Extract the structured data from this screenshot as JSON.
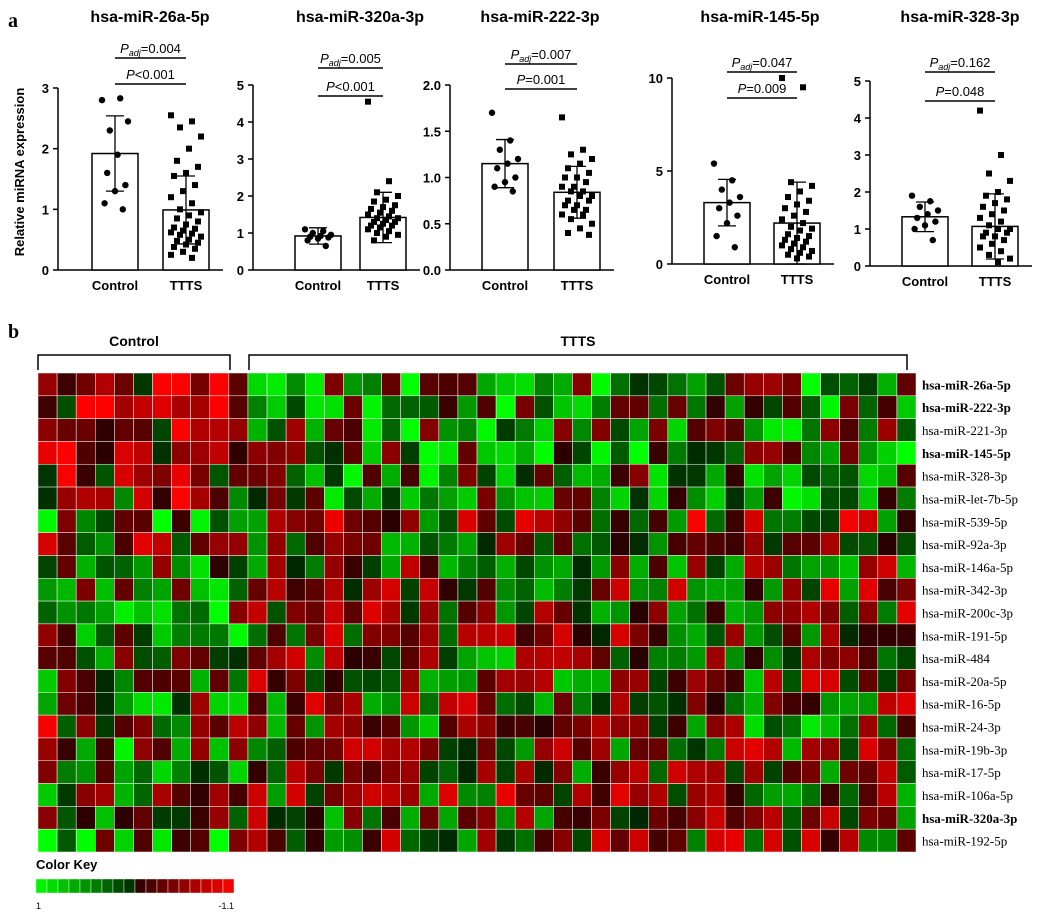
{
  "panel_labels": {
    "a": "a",
    "b": "b"
  },
  "y_axis_label": "Relative miRNA expression",
  "chart_data": [
    {
      "type": "bar",
      "title": "hsa-miR-26a-5p",
      "categories": [
        "Control",
        "TTTS"
      ],
      "values": [
        1.92,
        0.99
      ],
      "sd": [
        0.62,
        0.56
      ],
      "ylim": [
        0,
        3
      ],
      "yticks": [
        0,
        1,
        2,
        3
      ],
      "ytick_labels": [
        "0",
        "1",
        "2",
        "3"
      ],
      "points": [
        [
          2.8,
          2.83,
          2.3,
          2.45,
          1.9,
          1.6,
          1.4,
          1.3,
          1.1,
          1.0
        ],
        [
          2.55,
          2.45,
          2.35,
          2.2,
          2.0,
          1.8,
          1.7,
          1.6,
          1.55,
          1.4,
          1.3,
          1.2,
          1.1,
          1.0,
          0.95,
          0.9,
          0.85,
          0.8,
          0.75,
          0.7,
          0.68,
          0.65,
          0.62,
          0.6,
          0.58,
          0.55,
          0.5,
          0.48,
          0.45,
          0.42,
          0.38,
          0.35,
          0.3,
          0.25,
          0.2
        ]
      ],
      "brackets": [
        {
          "label_prefix": "P",
          "label_sub": "adj",
          "value": "=0.004"
        },
        {
          "label_prefix": "P",
          "label_sub": "",
          "value": "<0.001"
        }
      ]
    },
    {
      "type": "bar",
      "title": "hsa-miR-320a-3p",
      "categories": [
        "Control",
        "TTTS"
      ],
      "values": [
        0.92,
        1.42
      ],
      "sd": [
        0.22,
        0.68
      ],
      "ylim": [
        0,
        5
      ],
      "yticks": [
        0,
        1,
        2,
        3,
        4,
        5
      ],
      "ytick_labels": [
        "0",
        "1",
        "2",
        "3",
        "4",
        "5"
      ],
      "points": [
        [
          1.1,
          1.05,
          1.0,
          0.95,
          0.92,
          0.9,
          0.88,
          0.85,
          0.8,
          0.65
        ],
        [
          4.55,
          2.4,
          2.1,
          2.0,
          1.9,
          1.85,
          1.75,
          1.7,
          1.65,
          1.6,
          1.55,
          1.5,
          1.45,
          1.4,
          1.4,
          1.35,
          1.3,
          1.3,
          1.25,
          1.2,
          1.2,
          1.15,
          1.1,
          1.05,
          1.0,
          0.95,
          0.9,
          0.8
        ]
      ],
      "brackets": [
        {
          "label_prefix": "P",
          "label_sub": "adj",
          "value": "=0.005"
        },
        {
          "label_prefix": "P",
          "label_sub": "",
          "value": "<0.001"
        }
      ]
    },
    {
      "type": "bar",
      "title": "hsa-miR-222-3p",
      "categories": [
        "Control",
        "TTTS"
      ],
      "values": [
        1.15,
        0.84
      ],
      "sd": [
        0.26,
        0.28
      ],
      "ylim": [
        0,
        2
      ],
      "yticks": [
        0,
        0.5,
        1,
        1.5,
        2
      ],
      "ytick_labels": [
        "0.0",
        "0.5",
        "1.0",
        "1.5",
        "2.0"
      ],
      "points": [
        [
          1.7,
          1.4,
          1.3,
          1.2,
          1.15,
          1.1,
          1.0,
          0.95,
          0.9,
          0.85
        ],
        [
          1.65,
          1.3,
          1.25,
          1.2,
          1.15,
          1.1,
          1.05,
          1.0,
          1.0,
          0.95,
          0.9,
          0.9,
          0.85,
          0.85,
          0.8,
          0.8,
          0.75,
          0.75,
          0.7,
          0.7,
          0.65,
          0.65,
          0.6,
          0.6,
          0.55,
          0.5,
          0.45,
          0.4,
          0.38
        ]
      ],
      "brackets": [
        {
          "label_prefix": "P",
          "label_sub": "adj",
          "value": "=0.007"
        },
        {
          "label_prefix": "P",
          "label_sub": "",
          "value": "=0.001"
        }
      ]
    },
    {
      "type": "bar",
      "title": "hsa-miR-145-5p",
      "categories": [
        "Control",
        "TTTS"
      ],
      "values": [
        3.3,
        2.2
      ],
      "sd": [
        1.25,
        2.2
      ],
      "ylim": [
        0,
        10
      ],
      "yticks": [
        0,
        5,
        10
      ],
      "ytick_labels": [
        "0",
        "5",
        "10"
      ],
      "points": [
        [
          5.4,
          4.5,
          4.0,
          3.6,
          3.3,
          3.0,
          2.6,
          2.2,
          1.5,
          0.9
        ],
        [
          10.0,
          9.5,
          4.4,
          4.2,
          3.9,
          3.6,
          3.4,
          3.2,
          3.0,
          2.8,
          2.6,
          2.4,
          2.2,
          2.0,
          1.9,
          1.8,
          1.6,
          1.5,
          1.4,
          1.3,
          1.2,
          1.1,
          1.0,
          0.9,
          0.8,
          0.7,
          0.6,
          0.5,
          0.4,
          0.3
        ]
      ],
      "brackets": [
        {
          "label_prefix": "P",
          "label_sub": "adj",
          "value": "=0.047"
        },
        {
          "label_prefix": "P",
          "label_sub": "",
          "value": "=0.009"
        }
      ]
    },
    {
      "type": "bar",
      "title": "hsa-miR-328-3p",
      "categories": [
        "Control",
        "TTTS"
      ],
      "values": [
        1.33,
        1.07
      ],
      "sd": [
        0.4,
        0.88
      ],
      "ylim": [
        0,
        5
      ],
      "yticks": [
        0,
        1,
        2,
        3,
        4,
        5
      ],
      "ytick_labels": [
        "0",
        "1",
        "2",
        "3",
        "4",
        "5"
      ],
      "points": [
        [
          1.9,
          1.75,
          1.6,
          1.5,
          1.4,
          1.3,
          1.2,
          1.1,
          1.0,
          0.7
        ],
        [
          4.2,
          3.0,
          2.5,
          2.3,
          2.0,
          1.9,
          1.8,
          1.7,
          1.6,
          1.5,
          1.4,
          1.3,
          1.2,
          1.1,
          1.0,
          1.0,
          0.9,
          0.9,
          0.8,
          0.8,
          0.7,
          0.6,
          0.5,
          0.4,
          0.3,
          0.2,
          0.1
        ]
      ],
      "brackets": [
        {
          "label_prefix": "P",
          "label_sub": "adj",
          "value": "=0.162"
        },
        {
          "label_prefix": "P",
          "label_sub": "",
          "value": "=0.048"
        }
      ]
    },
    {
      "type": "heatmap",
      "group_labels": [
        "Control",
        "TTTS"
      ],
      "n_control": 11,
      "n_ttts": 35,
      "rows": [
        "hsa-miR-26a-5p",
        "hsa-miR-222-3p",
        "hsa-miR-221-3p",
        "hsa-miR-145-5p",
        "hsa-miR-328-3p",
        "hsa-miR-let-7b-5p",
        "hsa-miR-539-5p",
        "hsa-miR-92a-3p",
        "hsa-miR-146a-5p",
        "hsa-miR-342-3p",
        "hsa-miR-200c-3p",
        "hsa-miR-191-5p",
        "hsa-miR-484",
        "hsa-miR-20a-5p",
        "hsa-miR-16-5p",
        "hsa-miR-24-3p",
        "hsa-miR-19b-3p",
        "hsa-miR-17-5p",
        "hsa-miR-106a-5p",
        "hsa-miR-320a-3p",
        "hsa-miR-192-5p"
      ],
      "bold_rows": [
        "hsa-miR-26a-5p",
        "hsa-miR-222-3p",
        "hsa-miR-145-5p",
        "hsa-miR-320a-3p"
      ],
      "value_range": [
        -1.1,
        1
      ],
      "color_key": {
        "title": "Color Key",
        "min_label": "1",
        "max_label": "-1.1",
        "low_color": "#00ff00",
        "mid_color": "#000000",
        "high_color": "#ff0000"
      }
    }
  ]
}
